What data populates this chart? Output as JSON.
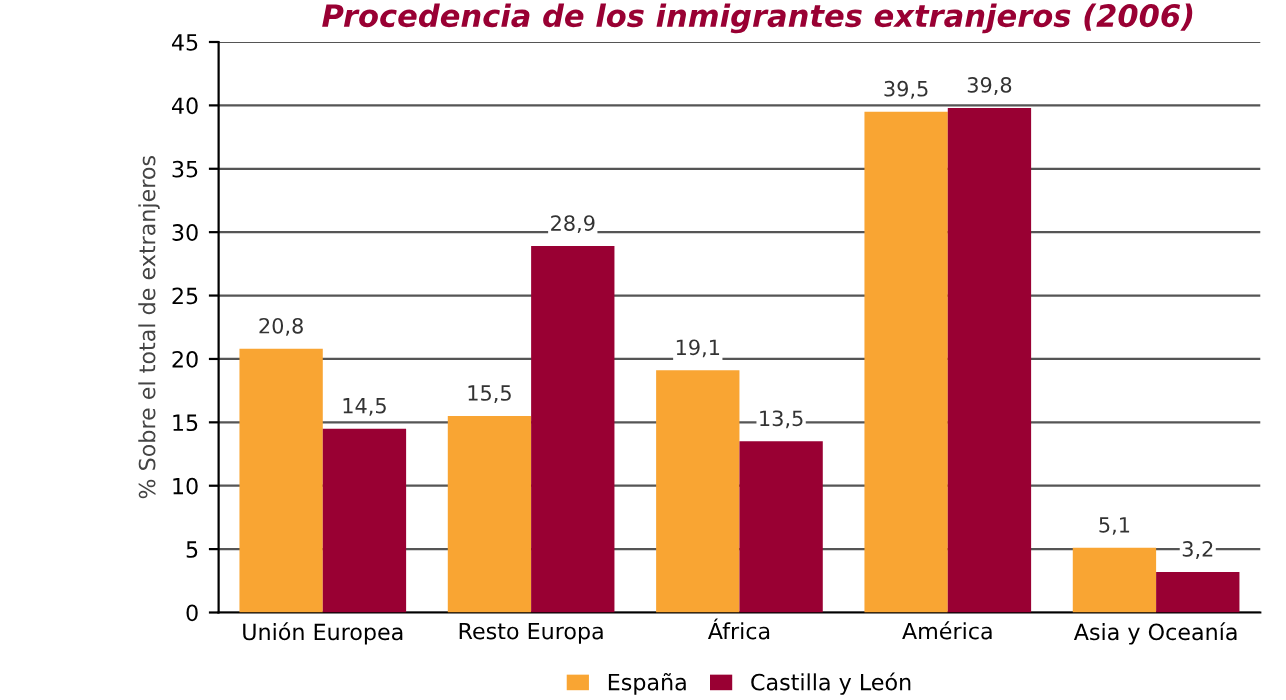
{
  "chart_data": {
    "type": "bar",
    "title": "Procedencia de los inmigrantes extranjeros (2006)",
    "ylabel": "% Sobre el total de extranjeros",
    "categories": [
      "Unión Europea",
      "Resto Europa",
      "África",
      "América",
      "Asia y Oceanía"
    ],
    "series": [
      {
        "name": "España",
        "color": "#f9a533",
        "values": [
          20.8,
          15.5,
          19.1,
          39.5,
          5.1
        ],
        "value_labels": [
          "20,8",
          "15,5",
          "19,1",
          "39,5",
          "5,1"
        ]
      },
      {
        "name": "Castilla y León",
        "color": "#990033",
        "values": [
          14.5,
          28.9,
          13.5,
          39.8,
          3.2
        ],
        "value_labels": [
          "14,5",
          "28,9",
          "13,5",
          "39,8",
          "3,2"
        ]
      }
    ],
    "ylim": [
      0,
      45
    ],
    "yticks": [
      0,
      5,
      10,
      15,
      20,
      25,
      30,
      35,
      40,
      45
    ],
    "grid": "y",
    "legend": "bottom"
  }
}
